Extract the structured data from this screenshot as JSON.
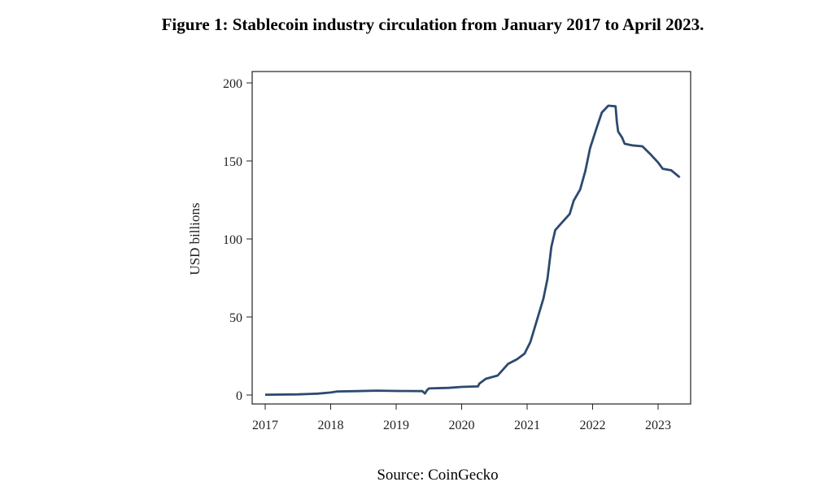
{
  "chart_data": {
    "type": "line",
    "title": "Figure 1: Stablecoin industry circulation from January 2017 to April 2023.",
    "source": "Source: CoinGecko",
    "xlabel": "",
    "ylabel": "USD billions",
    "xlim": [
      2016.8,
      2023.65
    ],
    "ylim": [
      -6,
      207
    ],
    "xticks": [
      "2017",
      "2018",
      "2019",
      "2020",
      "2021",
      "2022",
      "2023"
    ],
    "yticks": [
      "0",
      "50",
      "100",
      "150",
      "200"
    ],
    "grid": false,
    "line_color": "#2d4a6e",
    "series": [
      {
        "x": [
          2017.0,
          2017.5,
          2017.8,
          2018.0,
          2018.1,
          2018.4,
          2018.7,
          2019.0,
          2019.4,
          2019.44,
          2019.47,
          2019.5,
          2019.8,
          2020.0,
          2020.25,
          2020.27,
          2020.37,
          2020.55,
          2020.71,
          2020.85,
          2020.96,
          2021.05,
          2021.15,
          2021.25,
          2021.31,
          2021.37,
          2021.43,
          2021.52,
          2021.65,
          2021.71,
          2021.81,
          2021.89,
          2021.96,
          2022.06,
          2022.14,
          2022.24,
          2022.35,
          2022.37,
          2022.39,
          2022.45,
          2022.49,
          2022.6,
          2022.76,
          2022.89,
          2023.0,
          2023.07,
          2023.2,
          2023.33
        ],
        "y": [
          0.2,
          0.4,
          0.9,
          1.6,
          2.3,
          2.5,
          2.8,
          2.6,
          2.5,
          1.0,
          3.0,
          4.2,
          4.6,
          5.2,
          5.5,
          7.3,
          10.4,
          12.5,
          20,
          23,
          26.5,
          34,
          48,
          62,
          74.5,
          95,
          105.7,
          110,
          116,
          124.5,
          131.7,
          143.7,
          158,
          171,
          181,
          185.4,
          185,
          175,
          168.8,
          165,
          161,
          160,
          159.4,
          154,
          149,
          145,
          144,
          139.5
        ]
      }
    ]
  }
}
